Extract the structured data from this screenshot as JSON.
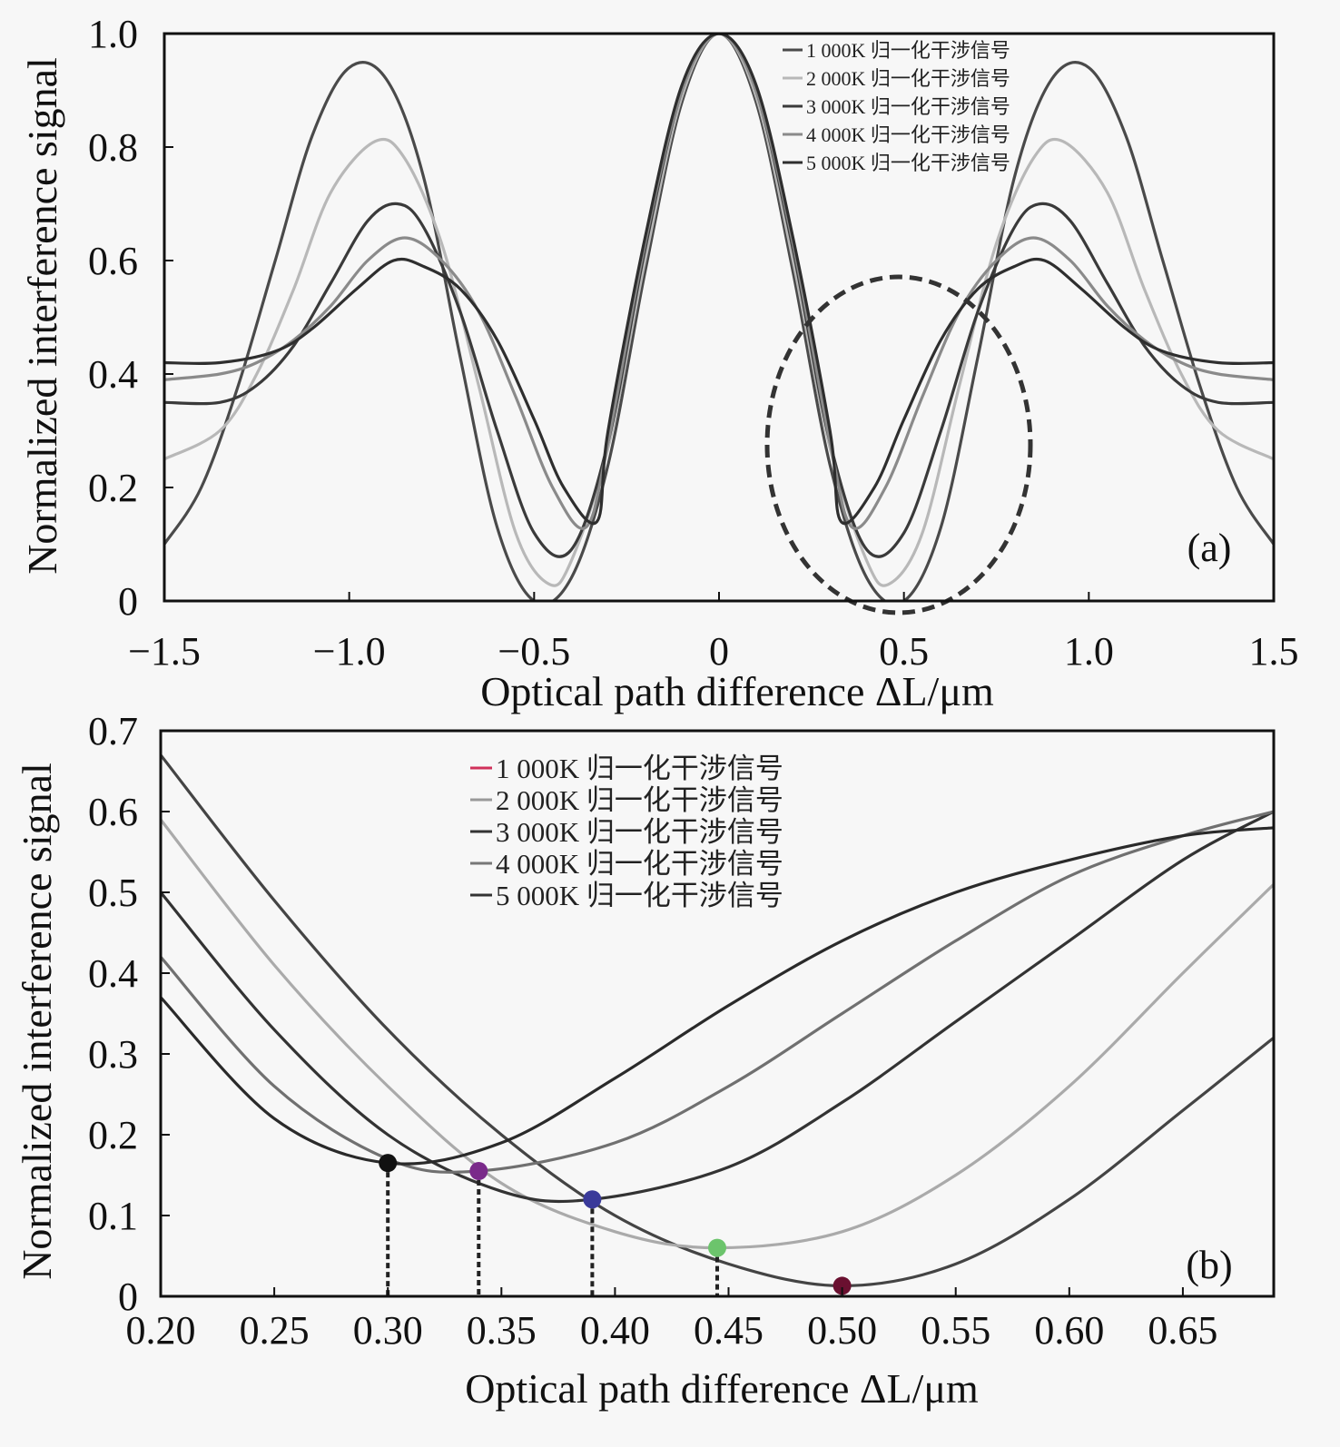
{
  "chart_data": [
    {
      "type": "line",
      "panel_label": "(a)",
      "xlabel": "Optical path difference ΔL/μm",
      "ylabel": "Normalized interference signal",
      "xlim": [
        -1.5,
        1.5
      ],
      "ylim": [
        0,
        1.0
      ],
      "xticks": [
        -1.5,
        -1.0,
        -0.5,
        0,
        0.5,
        1.0,
        1.5
      ],
      "xtick_labels": [
        "−1.5",
        "−1.0",
        "−0.5",
        "0",
        "0.5",
        "1.0",
        "1.5"
      ],
      "yticks": [
        0,
        0.2,
        0.4,
        0.6,
        0.8,
        1.0
      ],
      "ytick_labels": [
        "0",
        "0.2",
        "0.4",
        "0.6",
        "0.8",
        "1.0"
      ],
      "legend": "top-right",
      "grid": false,
      "annotation": "dashed ellipse around 0.2–0.7 region",
      "series": [
        {
          "name": "1 000K 归一化干涉信号",
          "color": "#4a4a4a",
          "x": [
            0,
            0.1,
            0.2,
            0.3,
            0.4,
            0.5,
            0.6,
            0.7,
            0.8,
            0.9,
            1.0,
            1.1,
            1.2,
            1.3,
            1.4,
            1.5
          ],
          "y": [
            1.0,
            0.88,
            0.58,
            0.24,
            0.04,
            0.0,
            0.13,
            0.43,
            0.75,
            0.92,
            0.94,
            0.82,
            0.6,
            0.38,
            0.2,
            0.1
          ]
        },
        {
          "name": "2 000K 归一化干涉信号",
          "color": "#b8b8b8",
          "x": [
            0,
            0.1,
            0.2,
            0.3,
            0.4,
            0.46,
            0.55,
            0.65,
            0.75,
            0.85,
            0.93,
            1.05,
            1.15,
            1.25,
            1.35,
            1.5
          ],
          "y": [
            1.0,
            0.89,
            0.6,
            0.27,
            0.07,
            0.03,
            0.12,
            0.38,
            0.63,
            0.78,
            0.81,
            0.72,
            0.55,
            0.4,
            0.3,
            0.25
          ]
        },
        {
          "name": "3 000K 归一化干涉信号",
          "color": "#3a3a3a",
          "x": [
            0,
            0.1,
            0.2,
            0.3,
            0.4,
            0.5,
            0.6,
            0.7,
            0.8,
            0.87,
            0.95,
            1.05,
            1.15,
            1.25,
            1.35,
            1.5
          ],
          "y": [
            1.0,
            0.9,
            0.62,
            0.28,
            0.09,
            0.12,
            0.3,
            0.51,
            0.66,
            0.7,
            0.67,
            0.56,
            0.45,
            0.38,
            0.35,
            0.35
          ]
        },
        {
          "name": "4 000K 归一化干涉信号",
          "color": "#8a8a8a",
          "x": [
            0,
            0.1,
            0.2,
            0.3,
            0.36,
            0.45,
            0.55,
            0.65,
            0.75,
            0.85,
            0.95,
            1.05,
            1.15,
            1.25,
            1.35,
            1.5
          ],
          "y": [
            1.0,
            0.9,
            0.63,
            0.28,
            0.13,
            0.2,
            0.36,
            0.51,
            0.6,
            0.64,
            0.6,
            0.52,
            0.46,
            0.42,
            0.4,
            0.39
          ]
        },
        {
          "name": "5 000K 归一化干涉信号",
          "color": "#2e2e2e",
          "x": [
            0,
            0.1,
            0.2,
            0.3,
            0.33,
            0.42,
            0.5,
            0.6,
            0.7,
            0.8,
            0.88,
            0.98,
            1.1,
            1.2,
            1.35,
            1.5
          ],
          "y": [
            1.0,
            0.91,
            0.64,
            0.3,
            0.14,
            0.2,
            0.32,
            0.46,
            0.55,
            0.59,
            0.6,
            0.55,
            0.48,
            0.44,
            0.42,
            0.42
          ]
        }
      ],
      "legend_entries": [
        "1 000K 归一化干涉信号",
        "2 000K 归一化干涉信号",
        "3 000K 归一化干涉信号",
        "4 000K 归一化干涉信号",
        "5 000K 归一化干涉信号"
      ]
    },
    {
      "type": "line",
      "panel_label": "(b)",
      "xlabel": "Optical path difference ΔL/μm",
      "ylabel": "Normalized interference signal",
      "xlim": [
        0.2,
        0.69
      ],
      "ylim": [
        0,
        0.7
      ],
      "xticks": [
        0.2,
        0.25,
        0.3,
        0.35,
        0.4,
        0.45,
        0.5,
        0.55,
        0.6,
        0.65
      ],
      "xtick_labels": [
        "0.20",
        "0.25",
        "0.30",
        "0.35",
        "0.40",
        "0.45",
        "0.50",
        "0.55",
        "0.60",
        "0.65"
      ],
      "yticks": [
        0,
        0.1,
        0.2,
        0.3,
        0.4,
        0.5,
        0.6,
        0.7
      ],
      "ytick_labels": [
        "0",
        "0.1",
        "0.2",
        "0.3",
        "0.4",
        "0.5",
        "0.6",
        "0.7"
      ],
      "legend": "top-center",
      "grid": false,
      "series": [
        {
          "name": "1 000K 归一化干涉信号",
          "color": "#444444",
          "x": [
            0.2,
            0.25,
            0.3,
            0.35,
            0.4,
            0.45,
            0.5,
            0.55,
            0.6,
            0.65,
            0.69
          ],
          "y": [
            0.67,
            0.49,
            0.33,
            0.2,
            0.1,
            0.04,
            0.013,
            0.04,
            0.12,
            0.23,
            0.32
          ]
        },
        {
          "name": "2 000K 归一化干涉信号",
          "color": "#aaaaaa",
          "x": [
            0.2,
            0.25,
            0.3,
            0.35,
            0.4,
            0.445,
            0.5,
            0.55,
            0.6,
            0.65,
            0.69
          ],
          "y": [
            0.59,
            0.41,
            0.26,
            0.14,
            0.08,
            0.06,
            0.08,
            0.15,
            0.26,
            0.4,
            0.51
          ]
        },
        {
          "name": "3 000K 归一化干涉信号",
          "color": "#333333",
          "x": [
            0.2,
            0.25,
            0.3,
            0.35,
            0.39,
            0.45,
            0.5,
            0.55,
            0.6,
            0.65,
            0.69
          ],
          "y": [
            0.5,
            0.33,
            0.2,
            0.13,
            0.12,
            0.16,
            0.24,
            0.34,
            0.44,
            0.54,
            0.6
          ]
        },
        {
          "name": "4 000K 归一化干涉信号",
          "color": "#707070",
          "x": [
            0.2,
            0.25,
            0.3,
            0.34,
            0.4,
            0.45,
            0.5,
            0.55,
            0.6,
            0.65,
            0.69
          ],
          "y": [
            0.42,
            0.26,
            0.17,
            0.155,
            0.19,
            0.26,
            0.35,
            0.44,
            0.52,
            0.57,
            0.6
          ]
        },
        {
          "name": "5 000K 归一化干涉信号",
          "color": "#2a2a2a",
          "x": [
            0.2,
            0.25,
            0.3,
            0.35,
            0.4,
            0.45,
            0.5,
            0.55,
            0.6,
            0.65,
            0.69
          ],
          "y": [
            0.37,
            0.22,
            0.165,
            0.19,
            0.27,
            0.36,
            0.44,
            0.5,
            0.54,
            0.57,
            0.58
          ]
        }
      ],
      "markers": [
        {
          "x": 0.3,
          "y": 0.165,
          "color": "#111111"
        },
        {
          "x": 0.34,
          "y": 0.155,
          "color": "#7a2a8a"
        },
        {
          "x": 0.39,
          "y": 0.12,
          "color": "#3a3a9a"
        },
        {
          "x": 0.445,
          "y": 0.06,
          "color": "#6cc46c"
        },
        {
          "x": 0.5,
          "y": 0.013,
          "color": "#6a1030"
        }
      ],
      "legend_entries": [
        "1 000K 归一化干涉信号",
        "2 000K 归一化干涉信号",
        "3 000K 归一化干涉信号",
        "4 000K 归一化干涉信号",
        "5 000K 归一化干涉信号"
      ],
      "legend_swatch_colors": [
        "#d0305a",
        "#999999",
        "#333333",
        "#777777",
        "#333333"
      ]
    }
  ]
}
